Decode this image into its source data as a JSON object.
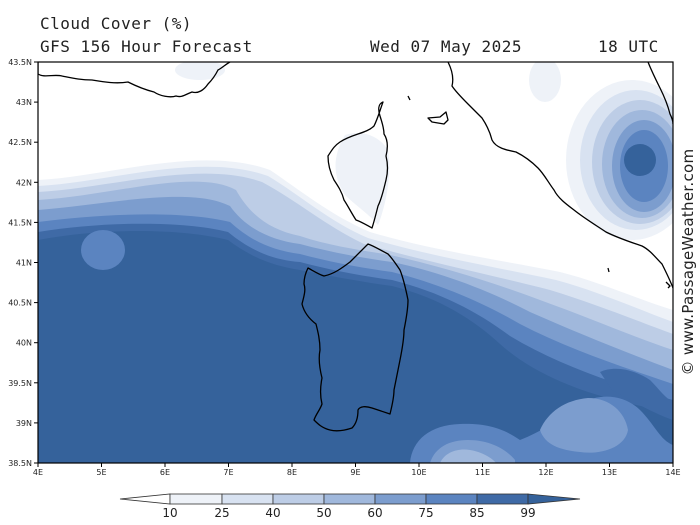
{
  "header": {
    "title": "Cloud Cover (%)",
    "subtitle": "GFS 156 Hour Forecast",
    "date": "Wed 07 May 2025",
    "time": "18 UTC"
  },
  "watermark": "© www.PassageWeather.com",
  "axes": {
    "lat_labels": [
      "43.5N",
      "43N",
      "42.5N",
      "42N",
      "41.5N",
      "41N",
      "40.5N",
      "40N",
      "39.5N",
      "39N",
      "38.5N"
    ],
    "lon_labels": [
      "4E",
      "5E",
      "6E",
      "7E",
      "8E",
      "9E",
      "10E",
      "11E",
      "12E",
      "13E",
      "14E"
    ]
  },
  "legend": {
    "ticks": [
      "10",
      "25",
      "40",
      "50",
      "60",
      "75",
      "85",
      "99"
    ],
    "colors": [
      "#ffffff",
      "#eef2f8",
      "#d8e2f1",
      "#bdcde6",
      "#a0b8dc",
      "#7c9dce",
      "#5b84c0",
      "#3f6aa6",
      "#35629b"
    ]
  },
  "map_colors": {
    "land_outline": "#000000",
    "c10": "#eef2f8",
    "c25": "#d8e2f1",
    "c40": "#bdcde6",
    "c50": "#a0b8dc",
    "c60": "#7c9dce",
    "c75": "#5b84c0",
    "c85": "#3f6aa6",
    "c99": "#35629b"
  }
}
